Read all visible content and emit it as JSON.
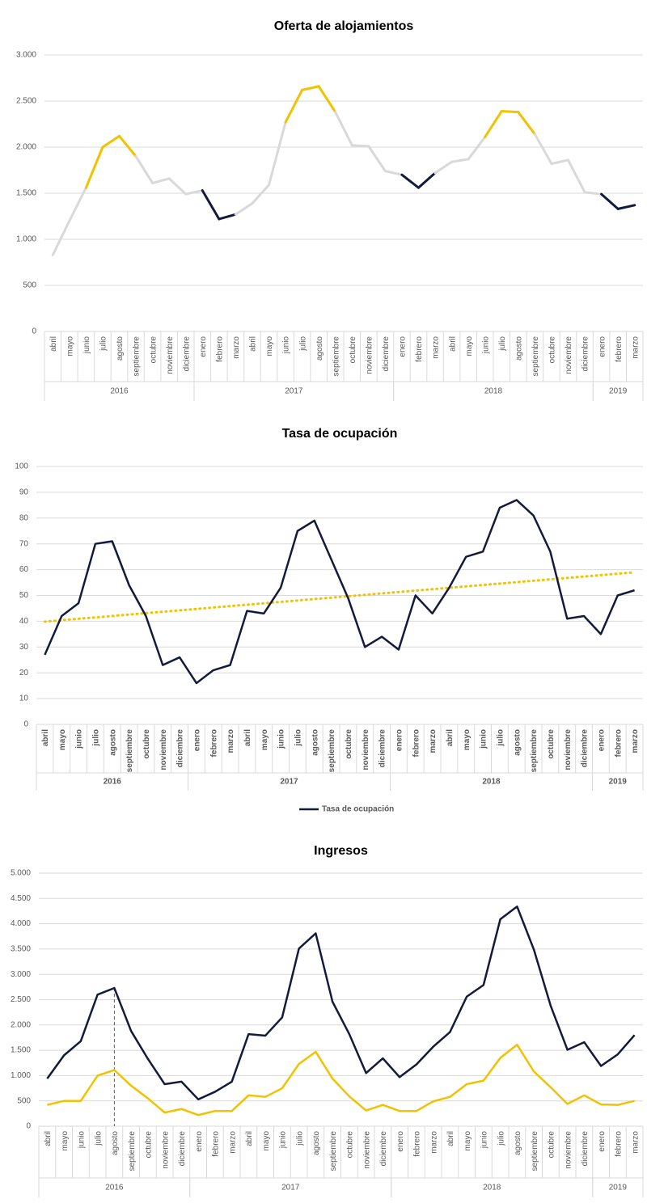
{
  "chart_data": [
    {
      "type": "line",
      "title": "Oferta de alojamientos",
      "categories": [
        "abril",
        "mayo",
        "junio",
        "julio",
        "agosto",
        "septiembre",
        "octubre",
        "noviembre",
        "diciembre",
        "enero",
        "febrero",
        "marzo",
        "abril",
        "mayo",
        "junio",
        "julio",
        "agosto",
        "septiembre",
        "octubre",
        "noviembre",
        "diciembre",
        "enero",
        "febrero",
        "marzo",
        "abril",
        "mayo",
        "junio",
        "julio",
        "agosto",
        "septiembre",
        "octubre",
        "noviembre",
        "diciembre",
        "enero",
        "febrero",
        "marzo"
      ],
      "category_groups": [
        {
          "label": "2016",
          "count": 9
        },
        {
          "label": "2017",
          "count": 12
        },
        {
          "label": "2018",
          "count": 12
        },
        {
          "label": "2019",
          "count": 3
        }
      ],
      "series": [
        {
          "color": "#d9d9d9",
          "values": [
            830,
            1200,
            1560,
            2000,
            2120,
            1900,
            1610,
            1660,
            1490,
            1530,
            1220,
            1270,
            1390,
            1590,
            2270,
            2620,
            2660,
            2380,
            2020,
            2010,
            1740,
            1700,
            1560,
            1720,
            1840,
            1870,
            2110,
            2390,
            2380,
            2140,
            1820,
            1860,
            1510,
            1490,
            1330,
            1370
          ],
          "point_colors": [
            "#d9d9d9",
            "#d9d9d9",
            "#f2c200",
            "#f2c200",
            "#f2c200",
            "#f2c200",
            "#d9d9d9",
            "#d9d9d9",
            "#d9d9d9",
            "#141a3c",
            "#141a3c",
            "#141a3c",
            "#d9d9d9",
            "#d9d9d9",
            "#f2c200",
            "#f2c200",
            "#f2c200",
            "#f2c200",
            "#d9d9d9",
            "#d9d9d9",
            "#d9d9d9",
            "#141a3c",
            "#141a3c",
            "#141a3c",
            "#d9d9d9",
            "#d9d9d9",
            "#f2c200",
            "#f2c200",
            "#f2c200",
            "#f2c200",
            "#d9d9d9",
            "#d9d9d9",
            "#d9d9d9",
            "#141a3c",
            "#141a3c",
            "#141a3c"
          ]
        }
      ],
      "ylim": [
        0,
        3000
      ],
      "yticks": [
        0,
        500,
        {
          "value": 1000,
          "label": "1.000"
        },
        {
          "value": 1500,
          "label": "1.500"
        },
        {
          "value": 2000,
          "label": "2.000"
        },
        {
          "value": 2500,
          "label": "2.500"
        },
        {
          "value": 3000,
          "label": "3.000"
        }
      ],
      "grid": true
    },
    {
      "type": "line",
      "title": "Tasa de ocupación",
      "categories": [
        "abril",
        "mayo",
        "junio",
        "julio",
        "agosto",
        "septiembre",
        "octubre",
        "noviembre",
        "diciembre",
        "enero",
        "febrero",
        "marzo",
        "abril",
        "mayo",
        "junio",
        "julio",
        "agosto",
        "septiembre",
        "octubre",
        "noviembre",
        "diciembre",
        "enero",
        "febrero",
        "marzo",
        "abril",
        "mayo",
        "junio",
        "julio",
        "agosto",
        "septiembre",
        "octubre",
        "noviembre",
        "diciembre",
        "enero",
        "febrero",
        "marzo"
      ],
      "category_groups": [
        {
          "label": "2016",
          "count": 9
        },
        {
          "label": "2017",
          "count": 12
        },
        {
          "label": "2018",
          "count": 12
        },
        {
          "label": "2019",
          "count": 3
        }
      ],
      "series": [
        {
          "name": "Tasa de ocupación",
          "color": "#141a3c",
          "values": [
            27,
            42,
            47,
            70,
            71,
            54,
            42,
            23,
            26,
            16,
            21,
            23,
            44,
            43,
            53,
            75,
            79,
            64,
            49,
            30,
            34,
            29,
            50,
            43,
            53,
            65,
            67,
            84,
            87,
            81,
            67,
            41,
            42,
            35,
            50,
            52
          ],
          "trendline": true,
          "trendline_color": "#f2c200"
        }
      ],
      "ylim": [
        0,
        100
      ],
      "yticks": [
        0,
        10,
        20,
        30,
        40,
        50,
        60,
        70,
        80,
        90,
        100
      ],
      "grid": true,
      "legend": "bottom",
      "bold_categories": true
    },
    {
      "type": "line",
      "title": "Ingresos",
      "categories": [
        "abril",
        "mayo",
        "junio",
        "julio",
        "agosto",
        "septiembre",
        "octubre",
        "noviembre",
        "diciembre",
        "enero",
        "febrero",
        "marzo",
        "abril",
        "mayo",
        "junio",
        "julio",
        "agosto",
        "septiembre",
        "octubre",
        "noviembre",
        "diciembre",
        "enero",
        "febrero",
        "marzo",
        "abril",
        "mayo",
        "junio",
        "julio",
        "agosto",
        "septiembre",
        "octubre",
        "noviembre",
        "diciembre",
        "enero",
        "febrero",
        "marzo"
      ],
      "category_groups": [
        {
          "label": "2016",
          "count": 9
        },
        {
          "label": "2017",
          "count": 12
        },
        {
          "label": "2018",
          "count": 12
        },
        {
          "label": "2019",
          "count": 3
        }
      ],
      "series": [
        {
          "color": "#141a3c",
          "values": [
            940,
            1400,
            1680,
            2600,
            2730,
            1880,
            1330,
            830,
            880,
            530,
            680,
            880,
            1820,
            1790,
            2150,
            3510,
            3810,
            2460,
            1820,
            1050,
            1340,
            970,
            1220,
            1570,
            1860,
            2560,
            2790,
            4090,
            4340,
            3490,
            2380,
            1510,
            1660,
            1190,
            1420,
            1800
          ]
        },
        {
          "color": "#f2c200",
          "values": [
            420,
            500,
            500,
            1000,
            1110,
            800,
            550,
            270,
            340,
            220,
            300,
            300,
            610,
            580,
            750,
            1230,
            1470,
            940,
            590,
            310,
            420,
            300,
            300,
            490,
            580,
            830,
            900,
            1350,
            1610,
            1080,
            770,
            440,
            610,
            430,
            420,
            500
          ]
        }
      ],
      "ylim": [
        0,
        5000
      ],
      "yticks": [
        0,
        500,
        {
          "value": 1000,
          "label": "1.000"
        },
        {
          "value": 1500,
          "label": "1.500"
        },
        {
          "value": 2000,
          "label": "2.000"
        },
        {
          "value": 2500,
          "label": "2.500"
        },
        {
          "value": 3000,
          "label": "3.000"
        },
        {
          "value": 3500,
          "label": "3.500"
        },
        {
          "value": 4000,
          "label": "4.000"
        },
        {
          "value": 4500,
          "label": "4.500"
        },
        {
          "value": 5000,
          "label": "5.000"
        }
      ],
      "grid": true,
      "drop_line_index": 4
    }
  ]
}
